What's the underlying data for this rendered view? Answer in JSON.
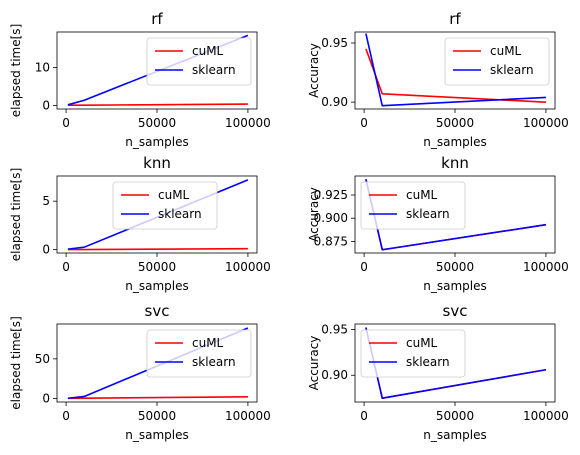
{
  "chart_data": [
    {
      "type": "line",
      "title": "rf",
      "xlabel": "n_samples",
      "ylabel": "elapsed time[s]",
      "x": [
        1000,
        10000,
        100000
      ],
      "xlim": [
        -5000,
        105000
      ],
      "ylim": [
        -0.9,
        19.3
      ],
      "xticks": [
        0,
        50000,
        100000
      ],
      "yticks": [
        0,
        10
      ],
      "legend": "upper-right",
      "series": [
        {
          "name": "cuML",
          "color": "#ff0000",
          "values": [
            0.1,
            0.1,
            0.4
          ]
        },
        {
          "name": "sklearn",
          "color": "#0000ff",
          "values": [
            0.2,
            1.4,
            18.4
          ]
        }
      ]
    },
    {
      "type": "line",
      "title": "rf",
      "xlabel": "n_samples",
      "ylabel": "Accuracy",
      "x": [
        1000,
        10000,
        100000
      ],
      "xlim": [
        -5000,
        105000
      ],
      "ylim": [
        0.8942,
        0.9593
      ],
      "xticks": [
        0,
        50000,
        100000
      ],
      "yticks": [
        0.9,
        0.95
      ],
      "legend": "upper-right",
      "series": [
        {
          "name": "cuML",
          "color": "#ff0000",
          "values": [
            0.945,
            0.907,
            0.9
          ]
        },
        {
          "name": "sklearn",
          "color": "#0000ff",
          "values": [
            0.958,
            0.897,
            0.904
          ]
        }
      ]
    },
    {
      "type": "line",
      "title": "knn",
      "xlabel": "n_samples",
      "ylabel": "elapsed time[s]",
      "x": [
        1000,
        10000,
        100000
      ],
      "xlim": [
        -5000,
        105000
      ],
      "ylim": [
        -0.35,
        7.6
      ],
      "xticks": [
        0,
        50000,
        100000
      ],
      "yticks": [
        0,
        5
      ],
      "legend": "upper-center",
      "series": [
        {
          "name": "cuML",
          "color": "#ff0000",
          "values": [
            0.0,
            0.0,
            0.1
          ]
        },
        {
          "name": "sklearn",
          "color": "#0000ff",
          "values": [
            0.05,
            0.25,
            7.2
          ]
        }
      ]
    },
    {
      "type": "line",
      "title": "knn",
      "xlabel": "n_samples",
      "ylabel": "Accuracy",
      "x": [
        1000,
        10000,
        100000
      ],
      "xlim": [
        -5000,
        105000
      ],
      "ylim": [
        0.8625,
        0.9455
      ],
      "xticks": [
        0,
        50000,
        100000
      ],
      "yticks": [
        0.875,
        0.9,
        0.925
      ],
      "legend": "upper-left",
      "series": [
        {
          "name": "cuML",
          "color": "#ff0000",
          "values": [
            0.942,
            0.866,
            0.893
          ]
        },
        {
          "name": "sklearn",
          "color": "#0000ff",
          "values": [
            0.942,
            0.866,
            0.893
          ]
        }
      ]
    },
    {
      "type": "line",
      "title": "svc",
      "xlabel": "n_samples",
      "ylabel": "elapsed time[s]",
      "x": [
        1000,
        10000,
        100000
      ],
      "xlim": [
        -5000,
        105000
      ],
      "ylim": [
        -4.5,
        94
      ],
      "xticks": [
        0,
        50000,
        100000
      ],
      "yticks": [
        0,
        50
      ],
      "legend": "upper-right",
      "series": [
        {
          "name": "cuML",
          "color": "#ff0000",
          "values": [
            0.1,
            0.3,
            2.0
          ]
        },
        {
          "name": "sklearn",
          "color": "#0000ff",
          "values": [
            0.2,
            2.5,
            89.0
          ]
        }
      ]
    },
    {
      "type": "line",
      "title": "svc",
      "xlabel": "n_samples",
      "ylabel": "Accuracy",
      "x": [
        1000,
        10000,
        100000
      ],
      "xlim": [
        -5000,
        105000
      ],
      "ylim": [
        0.8708,
        0.9559
      ],
      "xticks": [
        0,
        50000,
        100000
      ],
      "yticks": [
        0.9,
        0.95
      ],
      "legend": "upper-left",
      "series": [
        {
          "name": "cuML",
          "color": "#ff0000",
          "values": [
            0.952,
            0.875,
            0.906
          ]
        },
        {
          "name": "sklearn",
          "color": "#0000ff",
          "values": [
            0.952,
            0.875,
            0.906
          ]
        }
      ]
    }
  ]
}
